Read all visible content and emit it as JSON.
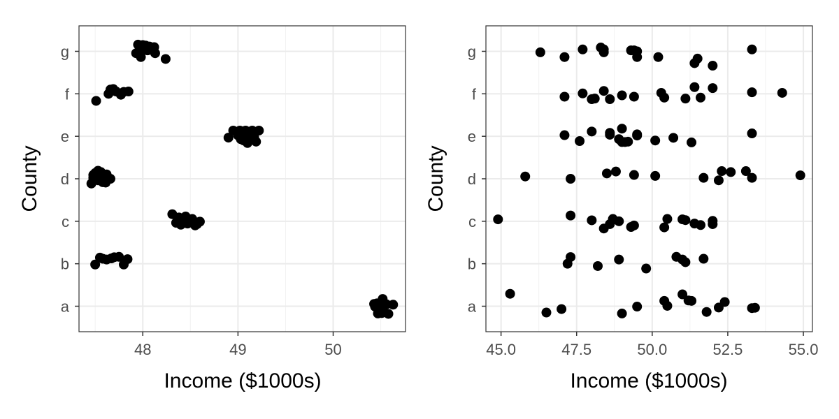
{
  "chart_data": [
    {
      "type": "scatter",
      "title": "",
      "xlabel": "Income ($1000s)",
      "ylabel": "County",
      "xlim": [
        47.33,
        50.76
      ],
      "categories": [
        "a",
        "b",
        "c",
        "d",
        "e",
        "f",
        "g"
      ],
      "xticks": [
        48,
        49,
        50
      ],
      "xtick_labels": [
        "48",
        "49",
        "50"
      ],
      "grid": true,
      "points": [
        {
          "x": 50.52,
          "y": 0.38
        },
        {
          "x": 50.46,
          "y": 0.15
        },
        {
          "x": 50.43,
          "y": 0.12
        },
        {
          "x": 50.56,
          "y": 0.1
        },
        {
          "x": 50.48,
          "y": 0.05
        },
        {
          "x": 50.44,
          "y": -0.02
        },
        {
          "x": 50.63,
          "y": 0.08
        },
        {
          "x": 50.5,
          "y": -0.12
        },
        {
          "x": 50.47,
          "y": -0.38
        },
        {
          "x": 50.51,
          "y": -0.36
        },
        {
          "x": 50.58,
          "y": -0.4
        },
        {
          "x": 50.52,
          "y": -0.18
        },
        {
          "x": 47.55,
          "y": 0.32
        },
        {
          "x": 47.62,
          "y": 0.22
        },
        {
          "x": 47.67,
          "y": 0.28
        },
        {
          "x": 47.7,
          "y": 0.34
        },
        {
          "x": 47.75,
          "y": 0.36
        },
        {
          "x": 47.84,
          "y": 0.24
        },
        {
          "x": 47.5,
          "y": -0.04
        },
        {
          "x": 47.8,
          "y": -0.04
        },
        {
          "x": 47.58,
          "y": 0.26
        },
        {
          "x": 48.31,
          "y": 0.37
        },
        {
          "x": 48.38,
          "y": 0.2
        },
        {
          "x": 48.45,
          "y": 0.25
        },
        {
          "x": 48.52,
          "y": 0.12
        },
        {
          "x": 48.36,
          "y": -0.05
        },
        {
          "x": 48.43,
          "y": 0.0
        },
        {
          "x": 48.5,
          "y": 0.05
        },
        {
          "x": 48.6,
          "y": -0.02
        },
        {
          "x": 48.4,
          "y": -0.18
        },
        {
          "x": 48.47,
          "y": -0.12
        },
        {
          "x": 48.55,
          "y": -0.22
        },
        {
          "x": 48.35,
          "y": -0.08
        },
        {
          "x": 48.44,
          "y": 0.14
        },
        {
          "x": 48.57,
          "y": -0.15
        },
        {
          "x": 47.53,
          "y": 0.42
        },
        {
          "x": 47.5,
          "y": 0.3
        },
        {
          "x": 47.57,
          "y": 0.25
        },
        {
          "x": 47.62,
          "y": 0.23
        },
        {
          "x": 47.48,
          "y": 0.2
        },
        {
          "x": 47.55,
          "y": 0.15
        },
        {
          "x": 47.6,
          "y": 0.1
        },
        {
          "x": 47.66,
          "y": 0.0
        },
        {
          "x": 47.48,
          "y": 0.05
        },
        {
          "x": 47.53,
          "y": -0.08
        },
        {
          "x": 47.58,
          "y": -0.18
        },
        {
          "x": 47.61,
          "y": -0.2
        },
        {
          "x": 47.46,
          "y": -0.25
        },
        {
          "x": 47.56,
          "y": 0.35
        },
        {
          "x": 48.95,
          "y": 0.3
        },
        {
          "x": 49.02,
          "y": 0.3
        },
        {
          "x": 49.08,
          "y": 0.3
        },
        {
          "x": 49.15,
          "y": 0.3
        },
        {
          "x": 49.22,
          "y": 0.3
        },
        {
          "x": 49.05,
          "y": 0.2
        },
        {
          "x": 49.12,
          "y": 0.15
        },
        {
          "x": 49.0,
          "y": 0.05
        },
        {
          "x": 49.1,
          "y": 0.0
        },
        {
          "x": 49.17,
          "y": -0.05
        },
        {
          "x": 48.9,
          "y": -0.07
        },
        {
          "x": 49.03,
          "y": -0.15
        },
        {
          "x": 49.13,
          "y": -0.18
        },
        {
          "x": 49.19,
          "y": -0.28
        },
        {
          "x": 49.1,
          "y": -0.35
        },
        {
          "x": 49.06,
          "y": -0.22
        },
        {
          "x": 47.51,
          "y": -0.37
        },
        {
          "x": 47.64,
          "y": 0.0
        },
        {
          "x": 47.67,
          "y": 0.18
        },
        {
          "x": 47.69,
          "y": 0.25
        },
        {
          "x": 47.72,
          "y": 0.12
        },
        {
          "x": 47.77,
          "y": -0.05
        },
        {
          "x": 47.8,
          "y": 0.1
        },
        {
          "x": 47.85,
          "y": 0.12
        },
        {
          "x": 47.66,
          "y": 0.22
        },
        {
          "x": 47.95,
          "y": 0.35
        },
        {
          "x": 48.0,
          "y": 0.33
        },
        {
          "x": 48.03,
          "y": 0.3
        },
        {
          "x": 48.07,
          "y": 0.25
        },
        {
          "x": 48.12,
          "y": 0.22
        },
        {
          "x": 47.97,
          "y": 0.18
        },
        {
          "x": 48.01,
          "y": 0.12
        },
        {
          "x": 48.05,
          "y": 0.05
        },
        {
          "x": 47.93,
          "y": -0.1
        },
        {
          "x": 48.13,
          "y": -0.1
        },
        {
          "x": 47.98,
          "y": -0.3
        },
        {
          "x": 48.24,
          "y": -0.4
        },
        {
          "x": 48.09,
          "y": 0.08
        }
      ]
    },
    {
      "type": "scatter",
      "title": "",
      "xlabel": "Income ($1000s)",
      "ylabel": "County",
      "xlim": [
        44.5,
        55.3
      ],
      "categories": [
        "a",
        "b",
        "c",
        "d",
        "e",
        "f",
        "g"
      ],
      "xticks": [
        45.0,
        47.5,
        50.0,
        52.5,
        55.0
      ],
      "xtick_labels": [
        "45.0",
        "47.5",
        "50.0",
        "52.5",
        "55.0"
      ],
      "grid": true,
      "points": [
        {
          "x": 45.3,
          "y": 0.65
        },
        {
          "x": 46.5,
          "y": -0.33
        },
        {
          "x": 47.0,
          "y": -0.15
        },
        {
          "x": 49.0,
          "y": -0.38
        },
        {
          "x": 49.5,
          "y": -0.02
        },
        {
          "x": 50.4,
          "y": 0.28
        },
        {
          "x": 50.5,
          "y": 0.02
        },
        {
          "x": 51.0,
          "y": 0.62
        },
        {
          "x": 51.2,
          "y": 0.3
        },
        {
          "x": 51.3,
          "y": 0.28
        },
        {
          "x": 51.8,
          "y": -0.3
        },
        {
          "x": 52.2,
          "y": -0.07
        },
        {
          "x": 52.4,
          "y": 0.22
        },
        {
          "x": 53.3,
          "y": -0.1
        },
        {
          "x": 53.4,
          "y": -0.08
        },
        {
          "x": 47.2,
          "y": 0.0
        },
        {
          "x": 47.3,
          "y": 0.35
        },
        {
          "x": 48.2,
          "y": -0.12
        },
        {
          "x": 48.9,
          "y": 0.22
        },
        {
          "x": 49.8,
          "y": -0.25
        },
        {
          "x": 50.8,
          "y": 0.36
        },
        {
          "x": 51.0,
          "y": 0.22
        },
        {
          "x": 51.1,
          "y": 0.08
        },
        {
          "x": 51.7,
          "y": 0.26
        },
        {
          "x": 44.9,
          "y": 0.1
        },
        {
          "x": 47.3,
          "y": 0.3
        },
        {
          "x": 48.0,
          "y": 0.05
        },
        {
          "x": 48.4,
          "y": -0.38
        },
        {
          "x": 48.6,
          "y": -0.15
        },
        {
          "x": 48.7,
          "y": 0.08
        },
        {
          "x": 48.9,
          "y": 0.0
        },
        {
          "x": 49.3,
          "y": -0.3
        },
        {
          "x": 49.4,
          "y": -0.22
        },
        {
          "x": 50.4,
          "y": -0.32
        },
        {
          "x": 50.5,
          "y": 0.12
        },
        {
          "x": 51.0,
          "y": 0.1
        },
        {
          "x": 51.1,
          "y": 0.06
        },
        {
          "x": 51.4,
          "y": -0.12
        },
        {
          "x": 51.6,
          "y": -0.2
        },
        {
          "x": 52.0,
          "y": -0.15
        },
        {
          "x": 52.0,
          "y": 0.02
        },
        {
          "x": 48.7,
          "y": 0.12
        },
        {
          "x": 45.8,
          "y": 0.12
        },
        {
          "x": 47.3,
          "y": 0.0
        },
        {
          "x": 48.5,
          "y": 0.28
        },
        {
          "x": 48.8,
          "y": 0.38
        },
        {
          "x": 49.4,
          "y": 0.2
        },
        {
          "x": 50.1,
          "y": 0.15
        },
        {
          "x": 51.7,
          "y": 0.05
        },
        {
          "x": 52.2,
          "y": -0.08
        },
        {
          "x": 52.3,
          "y": 0.4
        },
        {
          "x": 52.6,
          "y": 0.35
        },
        {
          "x": 53.1,
          "y": 0.4
        },
        {
          "x": 53.3,
          "y": 0.05
        },
        {
          "x": 54.9,
          "y": 0.18
        },
        {
          "x": 47.1,
          "y": 0.06
        },
        {
          "x": 47.6,
          "y": -0.25
        },
        {
          "x": 48.0,
          "y": 0.25
        },
        {
          "x": 48.6,
          "y": 0.08
        },
        {
          "x": 48.6,
          "y": 0.18
        },
        {
          "x": 49.0,
          "y": 0.4
        },
        {
          "x": 49.0,
          "y": -0.3
        },
        {
          "x": 49.1,
          "y": -0.3
        },
        {
          "x": 49.2,
          "y": -0.28
        },
        {
          "x": 49.5,
          "y": 0.1
        },
        {
          "x": 49.5,
          "y": 0.04
        },
        {
          "x": 50.1,
          "y": -0.22
        },
        {
          "x": 50.7,
          "y": -0.08
        },
        {
          "x": 51.3,
          "y": -0.32
        },
        {
          "x": 53.3,
          "y": 0.15
        },
        {
          "x": 48.9,
          "y": -0.15
        },
        {
          "x": 47.1,
          "y": -0.15
        },
        {
          "x": 47.7,
          "y": 0.02
        },
        {
          "x": 48.0,
          "y": -0.28
        },
        {
          "x": 48.1,
          "y": -0.25
        },
        {
          "x": 48.4,
          "y": 0.15
        },
        {
          "x": 48.6,
          "y": -0.28
        },
        {
          "x": 49.0,
          "y": -0.08
        },
        {
          "x": 49.4,
          "y": -0.15
        },
        {
          "x": 50.3,
          "y": 0.05
        },
        {
          "x": 50.4,
          "y": -0.2
        },
        {
          "x": 51.1,
          "y": -0.25
        },
        {
          "x": 51.4,
          "y": 0.35
        },
        {
          "x": 51.6,
          "y": -0.2
        },
        {
          "x": 52.0,
          "y": 0.3
        },
        {
          "x": 53.3,
          "y": 0.08
        },
        {
          "x": 54.3,
          "y": 0.05
        },
        {
          "x": 46.3,
          "y": -0.05
        },
        {
          "x": 47.1,
          "y": -0.3
        },
        {
          "x": 47.7,
          "y": 0.1
        },
        {
          "x": 48.3,
          "y": 0.2
        },
        {
          "x": 48.4,
          "y": 0.1
        },
        {
          "x": 48.4,
          "y": -0.05
        },
        {
          "x": 49.4,
          "y": 0.05
        },
        {
          "x": 49.5,
          "y": 0.0
        },
        {
          "x": 49.5,
          "y": -0.3
        },
        {
          "x": 50.2,
          "y": -0.3
        },
        {
          "x": 51.5,
          "y": -0.38
        },
        {
          "x": 51.4,
          "y": -0.62
        },
        {
          "x": 52.0,
          "y": -0.75
        },
        {
          "x": 53.3,
          "y": 0.1
        },
        {
          "x": 49.3,
          "y": 0.05
        }
      ]
    }
  ]
}
